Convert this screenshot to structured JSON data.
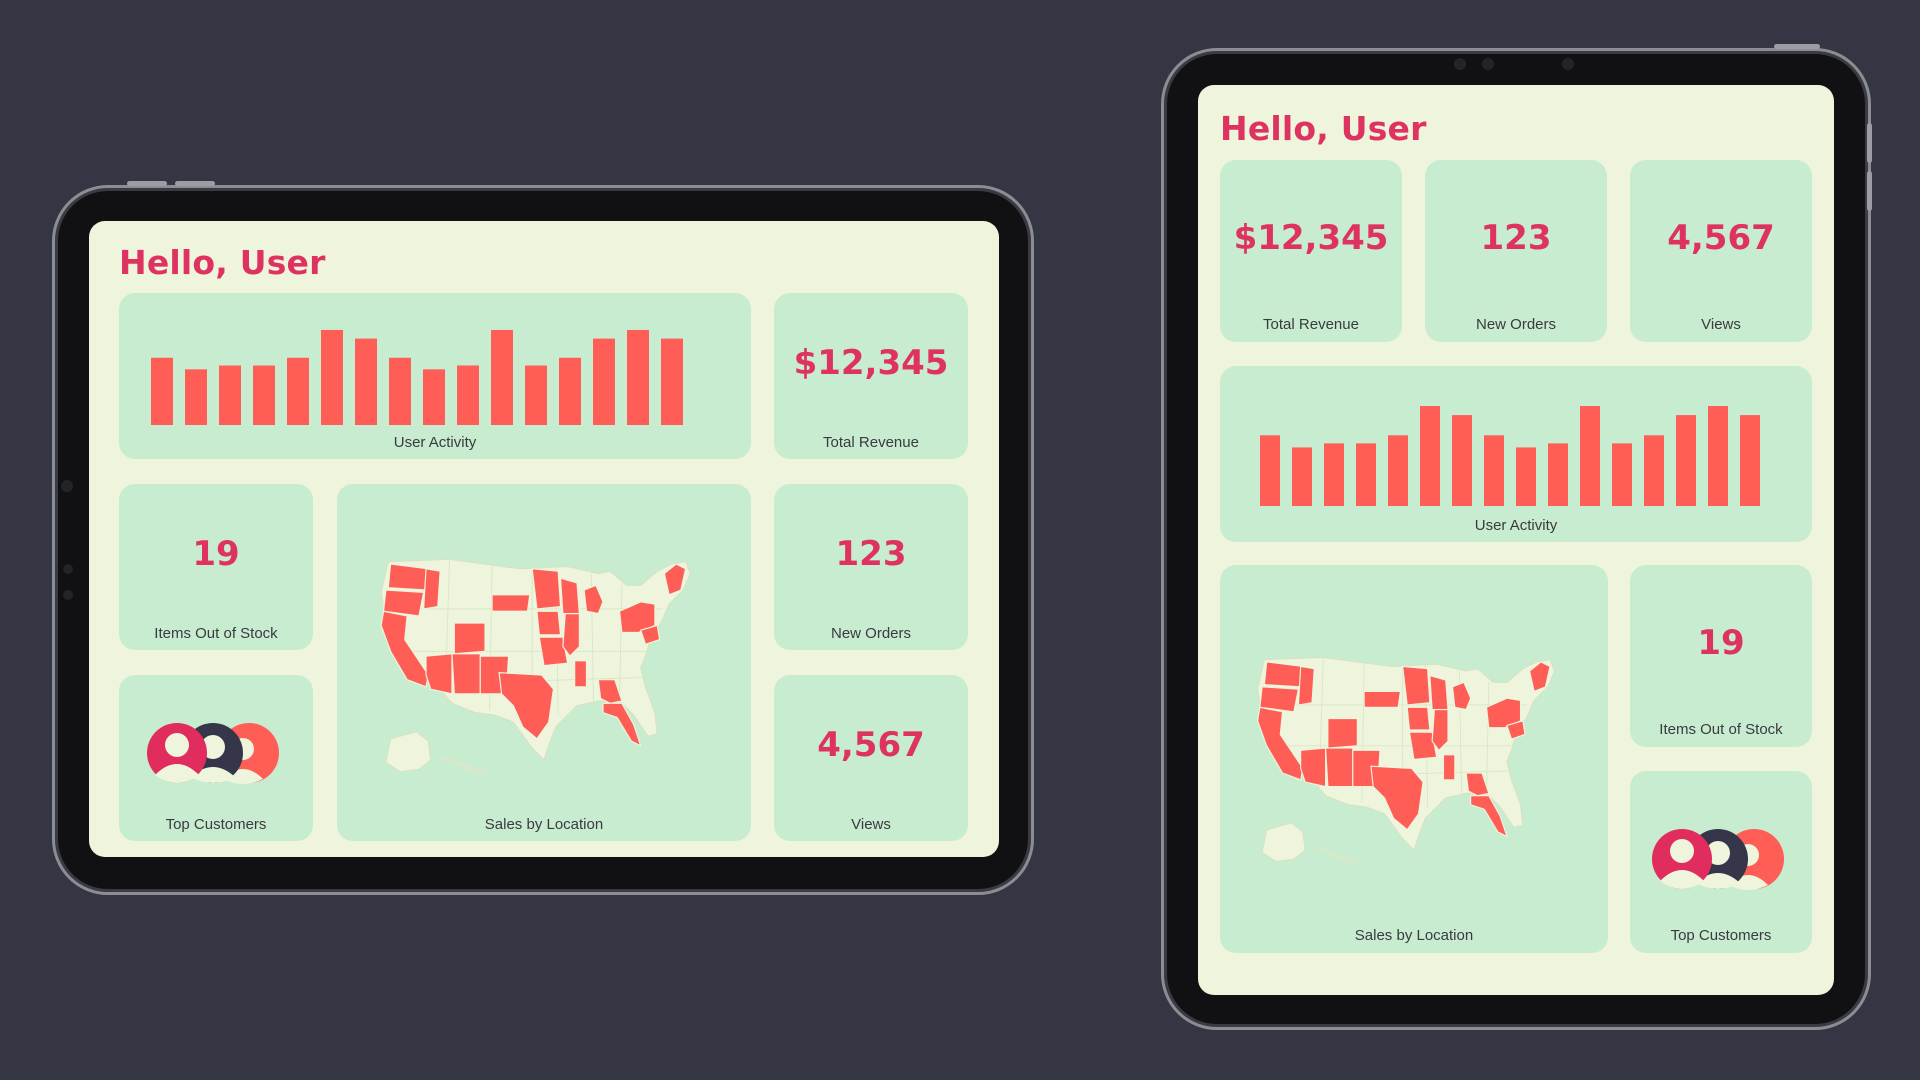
{
  "greeting": "Hello, User",
  "metrics": {
    "revenue_value": "$12,345",
    "revenue_label": "Total Revenue",
    "orders_value": "123",
    "orders_label": "New Orders",
    "views_value": "4,567",
    "views_label": "Views",
    "stock_value": "19",
    "stock_label": "Items Out of Stock"
  },
  "activity_label": "User Activity",
  "customers_label": "Top Customers",
  "map_label": "Sales by Location",
  "chart_data": {
    "type": "bar",
    "values": [
      7,
      5.8,
      6.2,
      6.2,
      7,
      9.9,
      9,
      7,
      5.8,
      6.2,
      9.9,
      6.2,
      7,
      9,
      9.9,
      9
    ],
    "ylim": [
      0,
      10
    ]
  },
  "colors": {
    "accent": "#de3361",
    "bar": "#ff5e57",
    "card": "#c8eccf",
    "screen": "#eef5dc",
    "backdrop": "#343644",
    "avatar_pink": "#e02d5d",
    "avatar_dark": "#35364a",
    "avatar_coral": "#ff5e57"
  }
}
